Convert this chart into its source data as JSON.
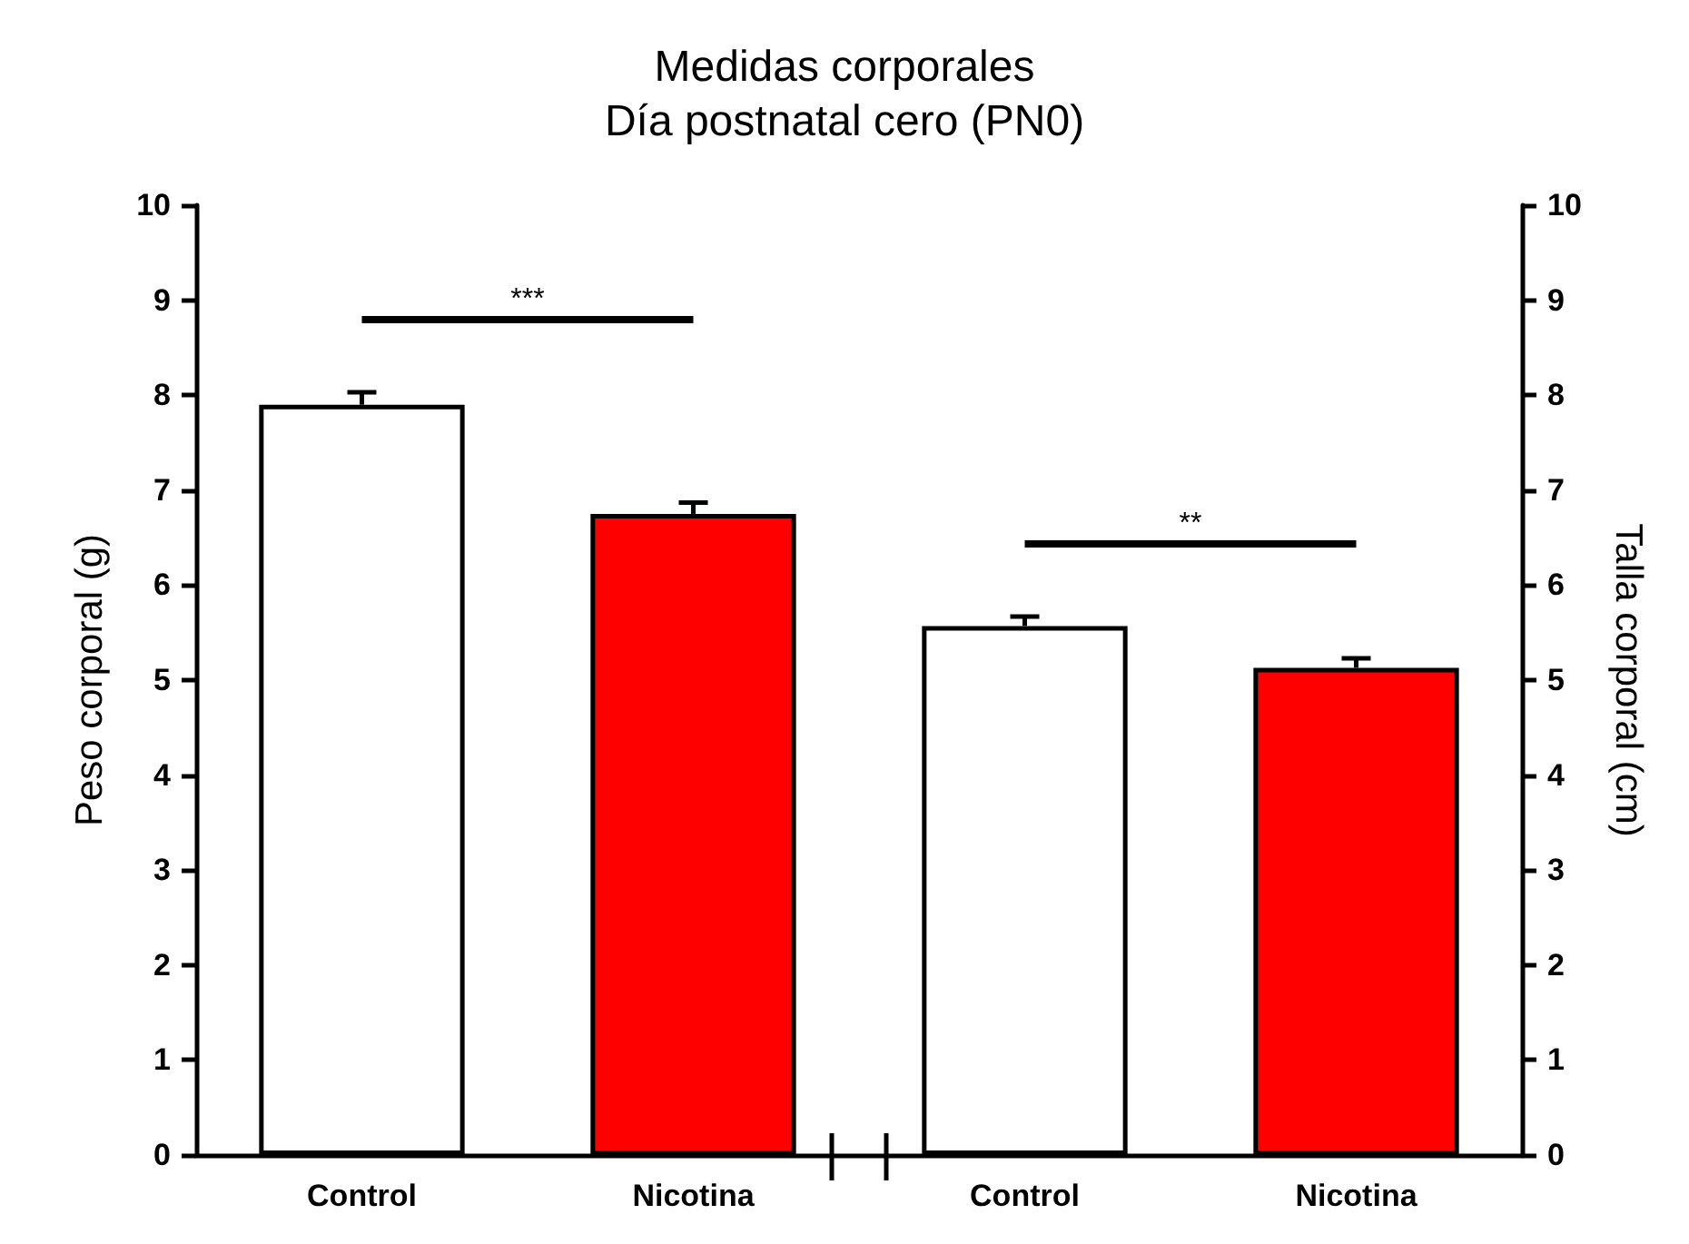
{
  "chart_data": {
    "type": "bar",
    "title": "Medidas corporales",
    "subtitle": "Día postnatal cero (PN0)",
    "ylabel": "Peso corporal (g)",
    "y2label": "Talla corporal (cm)",
    "categories": [
      "Control",
      "Nicotina",
      "Control",
      "Nicotina"
    ],
    "series": [
      {
        "colors": [
          "#ffffff",
          "#ff0000",
          null,
          null
        ],
        "values": [
          7.9,
          6.75,
          null,
          null
        ],
        "errors": [
          0.13,
          0.12,
          null,
          null
        ]
      },
      {
        "axis": "y2",
        "colors": [
          null,
          null,
          "#ffffff",
          "#ff0000"
        ],
        "values": [
          null,
          null,
          5.57,
          5.13
        ],
        "errors": [
          null,
          null,
          0.1,
          0.1
        ]
      }
    ],
    "ylim": [
      0,
      10
    ],
    "yticks": [
      0,
      1,
      2,
      3,
      4,
      5,
      6,
      7,
      8,
      9,
      10
    ],
    "y2lim": [
      0,
      10
    ],
    "y2ticks": [
      0,
      1,
      2,
      3,
      4,
      5,
      6,
      7,
      8,
      9,
      10
    ],
    "annotations": [
      "***",
      "**"
    ],
    "grid": false
  }
}
